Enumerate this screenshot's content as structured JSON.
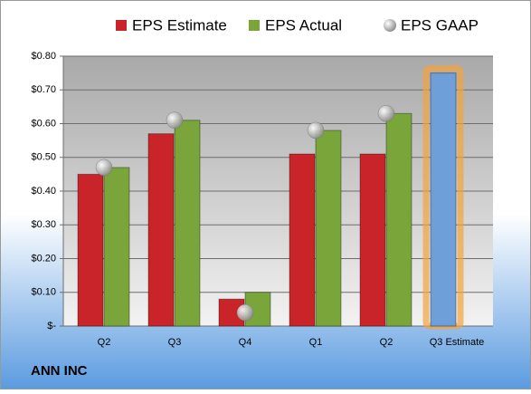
{
  "chart_data": {
    "type": "bar",
    "footer": "ANN INC",
    "categories": [
      "Q2",
      "Q3",
      "Q4",
      "Q1",
      "Q2",
      "Q3 Estimate"
    ],
    "series": [
      {
        "name": "EPS Estimate",
        "color": "#c8242a",
        "colors": [
          "#c8242a",
          "#c8242a",
          "#c8242a",
          "#c8242a",
          "#c8242a",
          "#6f9fd8"
        ],
        "values": [
          0.45,
          0.57,
          0.08,
          0.51,
          0.51,
          0.75
        ]
      },
      {
        "name": "EPS Actual",
        "color": "#7aa53a",
        "values": [
          0.47,
          0.61,
          0.1,
          0.58,
          0.63,
          null
        ]
      },
      {
        "name": "EPS GAAP",
        "color": "#a8a8a8",
        "marker": "circle",
        "values": [
          0.47,
          0.61,
          0.04,
          0.58,
          0.63,
          null
        ]
      }
    ],
    "highlight_color": "#f5a23c",
    "ylim": [
      0,
      0.8
    ],
    "yticks": [
      {
        "value": 0,
        "label": "$-"
      },
      {
        "value": 0.1,
        "label": "$0.10"
      },
      {
        "value": 0.2,
        "label": "$0.20"
      },
      {
        "value": 0.3,
        "label": "$0.30"
      },
      {
        "value": 0.4,
        "label": "$0.40"
      },
      {
        "value": 0.5,
        "label": "$0.50"
      },
      {
        "value": 0.6,
        "label": "$0.60"
      },
      {
        "value": 0.7,
        "label": "$0.70"
      },
      {
        "value": 0.8,
        "label": "$0.80"
      }
    ],
    "grid": true
  }
}
